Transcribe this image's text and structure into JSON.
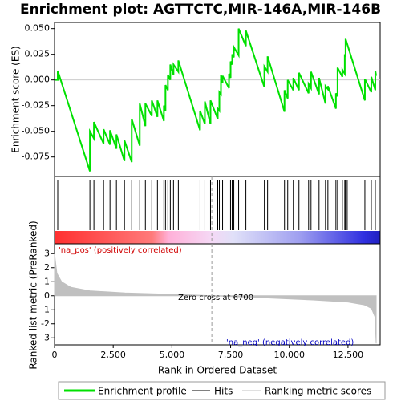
{
  "chart_data": {
    "type": "gsea",
    "title": "Enrichment plot: AGTTCTC,MIR-146A,MIR-146B",
    "y_label": "Enrichment score (ES)",
    "y2_label": "Ranked list metric (PreRanked)",
    "x_label": "Rank in Ordered Dataset",
    "xlim": [
      0,
      13870
    ],
    "xticks": [
      0,
      {
        "value": 2500,
        "label": "2,500"
      },
      {
        "value": 5000,
        "label": "5,000"
      },
      {
        "value": 7500,
        "label": "7,500"
      },
      {
        "value": 10000,
        "label": "10,000"
      },
      {
        "value": 12500,
        "label": "12,500"
      }
    ],
    "ylim": [
      -0.094,
      0.056
    ],
    "yticks": [
      {
        "value": 0.05,
        "label": "0.050"
      },
      {
        "value": 0.025,
        "label": "0.025"
      },
      {
        "value": 0,
        "label": "0.000"
      },
      {
        "value": -0.025,
        "label": "-0.025"
      },
      {
        "value": -0.05,
        "label": "-0.050"
      },
      {
        "value": -0.075,
        "label": "-0.075"
      }
    ],
    "y2lim": [
      -3.5,
      3.7
    ],
    "y2ticks": [
      3,
      2,
      1,
      0,
      -1,
      -2,
      -3
    ],
    "series": [
      {
        "name": "Enrichment profile",
        "color": "#00e000",
        "x": [
          0,
          137,
          137,
          1507,
          1507,
          1678,
          1678,
          2089,
          2089,
          2363,
          2363,
          2637,
          2637,
          2979,
          2979,
          3288,
          3288,
          3630,
          3630,
          3870,
          3870,
          4144,
          4144,
          4384,
          4384,
          4658,
          4658,
          4726,
          4726,
          4829,
          4829,
          4932,
          4932,
          5068,
          5068,
          5274,
          5274,
          6199,
          6199,
          6404,
          6404,
          6644,
          6644,
          6952,
          6952,
          7021,
          7021,
          7089,
          7089,
          7158,
          7158,
          7432,
          7432,
          7500,
          7500,
          7568,
          7568,
          7637,
          7637,
          7842,
          7842,
          8151,
          8151,
          8938,
          8938,
          9075,
          9075,
          9795,
          9795,
          9932,
          9932,
          10171,
          10171,
          10411,
          10411,
          10822,
          10822,
          10925,
          10925,
          11267,
          11267,
          11541,
          11541,
          11644,
          11644,
          11986,
          11986,
          12055,
          12055,
          12260,
          12260,
          12363,
          12363,
          12397,
          12397,
          13219,
          13219,
          13493,
          13493,
          13664,
          13664,
          13700
        ],
        "values": [
          0,
          0,
          0.009,
          -0.089,
          -0.05,
          -0.057,
          -0.041,
          -0.062,
          -0.048,
          -0.063,
          -0.049,
          -0.067,
          -0.053,
          -0.079,
          -0.059,
          -0.08,
          -0.038,
          -0.064,
          -0.023,
          -0.045,
          -0.023,
          -0.035,
          -0.02,
          -0.036,
          -0.02,
          -0.04,
          -0.025,
          -0.03,
          -0.005,
          -0.01,
          0.005,
          0,
          0.015,
          0.005,
          0.015,
          0.008,
          0.019,
          -0.049,
          -0.03,
          -0.043,
          -0.021,
          -0.043,
          -0.02,
          -0.038,
          -0.028,
          -0.03,
          -0.012,
          -0.014,
          0.005,
          -0.003,
          0.004,
          -0.008,
          0.006,
          0.002,
          0.018,
          0.015,
          0.025,
          0.022,
          0.032,
          0.024,
          0.05,
          0.033,
          0.048,
          -0.007,
          0.013,
          0.008,
          0.023,
          -0.031,
          -0.01,
          -0.018,
          0,
          -0.01,
          0.002,
          -0.01,
          0.007,
          -0.013,
          -0.004,
          -0.008,
          0.008,
          -0.014,
          0.002,
          -0.023,
          -0.006,
          -0.009,
          -0.006,
          -0.028,
          -0.013,
          -0.016,
          0.012,
          0.003,
          0.01,
          0.006,
          0.025,
          0.022,
          0.04,
          -0.02,
          0.001,
          -0.012,
          0.003,
          -0.01,
          0.009,
          0.004
        ]
      },
      {
        "name": "Hits",
        "color": "#000000",
        "x": [
          137,
          1507,
          1678,
          2089,
          2363,
          2637,
          2979,
          3288,
          3630,
          3870,
          4144,
          4384,
          4658,
          4726,
          4829,
          4932,
          5068,
          5274,
          6199,
          6404,
          6644,
          6952,
          7021,
          7089,
          7158,
          7432,
          7500,
          7568,
          7637,
          7842,
          8151,
          8938,
          9075,
          9795,
          9932,
          10171,
          10411,
          10822,
          10925,
          11267,
          11541,
          11644,
          11986,
          12055,
          12260,
          12363,
          12397,
          12466,
          13219,
          13493,
          13664
        ]
      },
      {
        "name": "Ranking metric scores",
        "color": "#c0c0c0",
        "axis": "y2",
        "x": [
          0,
          100,
          300,
          700,
          1500,
          3000,
          5000,
          6700,
          9000,
          11000,
          12500,
          13200,
          13500,
          13650,
          13700
        ],
        "values": [
          3.0,
          1.6,
          1.0,
          0.6,
          0.35,
          0.2,
          0.1,
          0,
          -0.15,
          -0.3,
          -0.45,
          -0.65,
          -0.9,
          -1.5,
          -3.4
        ]
      }
    ],
    "zero_cross": 6700,
    "zero_cross_label": "Zero cross at 6700",
    "pos_label": "'na_pos' (positively correlated)",
    "neg_label": "'na_neg' (negatively correlated)"
  }
}
